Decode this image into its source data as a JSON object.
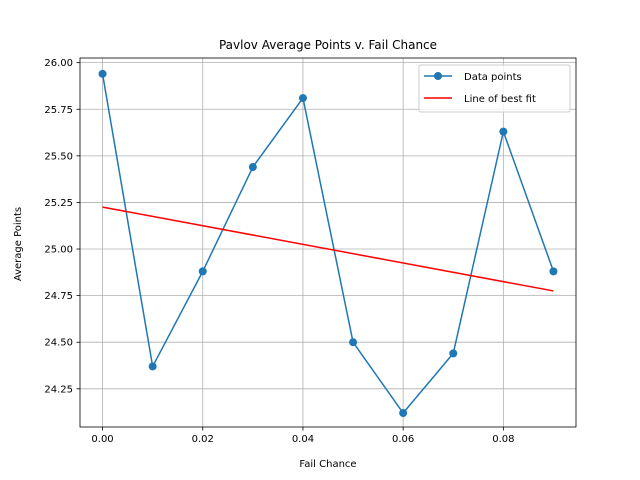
{
  "chart_data": {
    "type": "line",
    "title": "Pavlov Average Points v. Fail Chance",
    "xlabel": "Fail Chance",
    "ylabel": "Average Points",
    "xlim": [
      -0.0045,
      0.0945
    ],
    "ylim": [
      24.045,
      26.025
    ],
    "x_ticks": [
      0.0,
      0.02,
      0.04,
      0.06,
      0.08
    ],
    "x_tick_labels": [
      "0.00",
      "0.02",
      "0.04",
      "0.06",
      "0.08"
    ],
    "y_ticks": [
      24.25,
      24.5,
      24.75,
      25.0,
      25.25,
      25.5,
      25.75,
      26.0
    ],
    "y_tick_labels": [
      "24.25",
      "24.50",
      "24.75",
      "25.00",
      "25.25",
      "25.50",
      "25.75",
      "26.00"
    ],
    "grid": true,
    "legend_position": "top-right",
    "series": [
      {
        "name": "Data points",
        "color": "#1f77b4",
        "marker": "circle",
        "x": [
          0.0,
          0.01,
          0.02,
          0.03,
          0.04,
          0.05,
          0.06,
          0.07,
          0.08,
          0.09
        ],
        "y": [
          25.94,
          24.37,
          24.88,
          25.44,
          25.81,
          24.5,
          24.12,
          24.44,
          25.63,
          24.88
        ]
      },
      {
        "name": "Line of best fit",
        "color": "#ff0000",
        "marker": "none",
        "x": [
          0.0,
          0.09
        ],
        "y": [
          25.225,
          24.775
        ]
      }
    ]
  }
}
